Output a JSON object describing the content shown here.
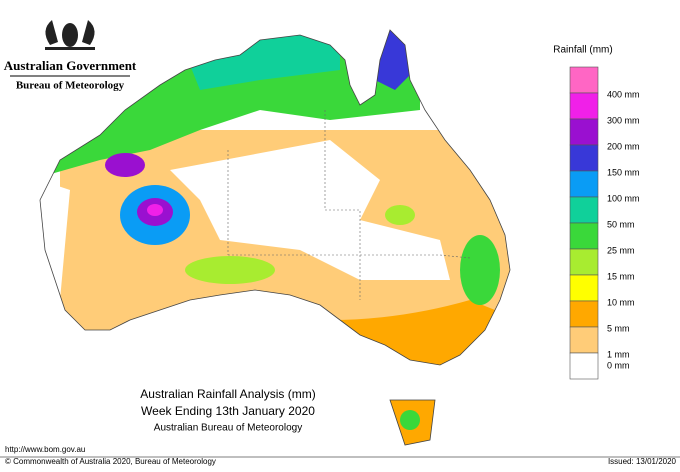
{
  "header": {
    "government": "Australian Government",
    "agency": "Bureau of Meteorology"
  },
  "legend": {
    "title": "Rainfall (mm)",
    "colors": [
      "#ff66c4",
      "#f020e8",
      "#9a10d0",
      "#3838d8",
      "#0a9cf5",
      "#10d09a",
      "#3ad83a",
      "#a8ec30",
      "#ffff00",
      "#ffa800",
      "#ffcc78",
      "#ffffff"
    ],
    "labels": [
      "400 mm",
      "300 mm",
      "200 mm",
      "150 mm",
      "100 mm",
      "50 mm",
      "25 mm",
      "15 mm",
      "10 mm",
      "5 mm",
      "1 mm",
      "0 mm"
    ]
  },
  "map_title": {
    "line1": "Australian Rainfall Analysis (mm)",
    "line2": "Week Ending 13th January 2020",
    "line3": "Australian Bureau of Meteorology"
  },
  "footer": {
    "url": "http://www.bom.gov.au",
    "copyright": "© Commonwealth of Australia 2020, Bureau of Meteorology",
    "issued": "Issued: 13/01/2020"
  }
}
